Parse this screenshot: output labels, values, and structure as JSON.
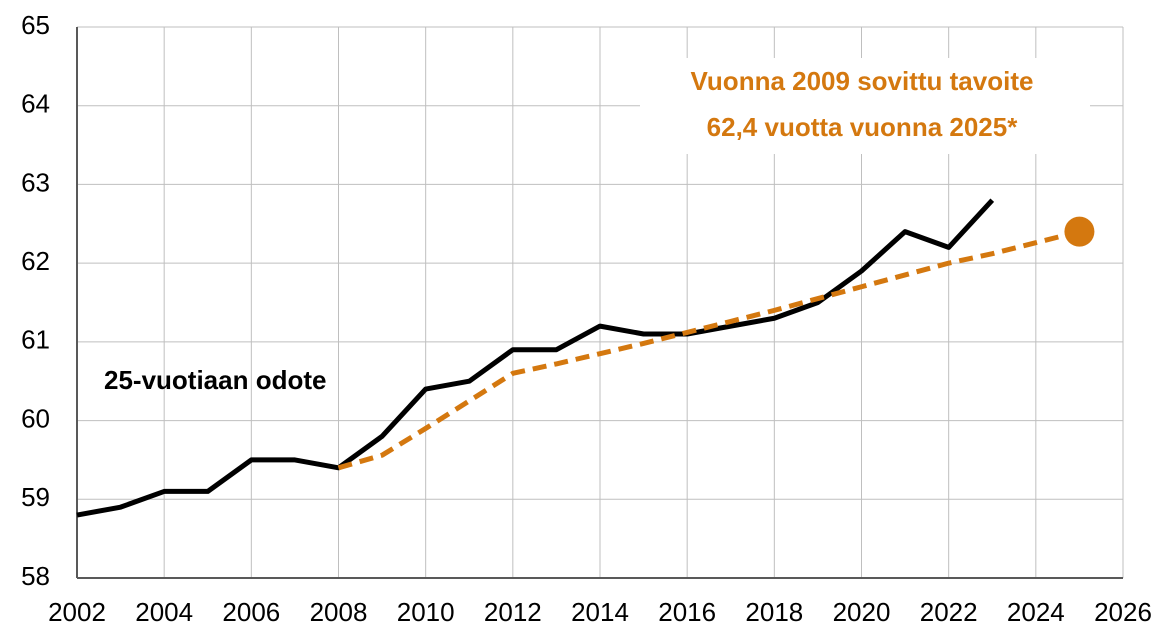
{
  "chart_data": {
    "type": "line",
    "annotations": [
      "Vuonna 2009 sovittu tavoite",
      "62,4 vuotta vuonna 2025*",
      "25-vuotiaan odote"
    ],
    "annotation_colors": [
      "#d4780f",
      "#d4780f",
      "#000000"
    ],
    "series": [
      {
        "color": "#000000",
        "dashed": false,
        "x": [
          2002,
          2003,
          2004,
          2005,
          2006,
          2007,
          2008,
          2009,
          2010,
          2011,
          2012,
          2013,
          2014,
          2015,
          2016,
          2017,
          2018,
          2019,
          2020,
          2021,
          2022,
          2023
        ],
        "values": [
          58.8,
          58.9,
          59.1,
          59.1,
          59.5,
          59.5,
          59.4,
          59.8,
          60.4,
          60.5,
          60.9,
          60.9,
          61.2,
          61.1,
          61.1,
          61.2,
          61.3,
          61.5,
          61.9,
          62.4,
          62.2,
          62.8
        ]
      },
      {
        "color": "#d4780f",
        "dashed": true,
        "x": [
          2008,
          2009,
          2010,
          2011,
          2012,
          2013,
          2014,
          2015,
          2016,
          2017,
          2018,
          2019,
          2020,
          2021,
          2022,
          2023,
          2024,
          2025
        ],
        "values": [
          59.4,
          59.56,
          59.9,
          60.25,
          60.6,
          60.72,
          60.85,
          60.98,
          61.12,
          61.26,
          61.4,
          61.55,
          61.7,
          61.85,
          62.0,
          62.12,
          62.26,
          62.4
        ]
      }
    ],
    "target_point": {
      "x": 2025,
      "y": 62.4,
      "color": "#d4780f"
    },
    "xlim": [
      2002,
      2026
    ],
    "xticks": [
      2002,
      2004,
      2006,
      2008,
      2010,
      2012,
      2014,
      2016,
      2018,
      2020,
      2022,
      2024,
      2026
    ],
    "ylim": [
      58,
      65
    ],
    "yticks": [
      58,
      59,
      60,
      61,
      62,
      63,
      64,
      65
    ],
    "grid": true
  }
}
